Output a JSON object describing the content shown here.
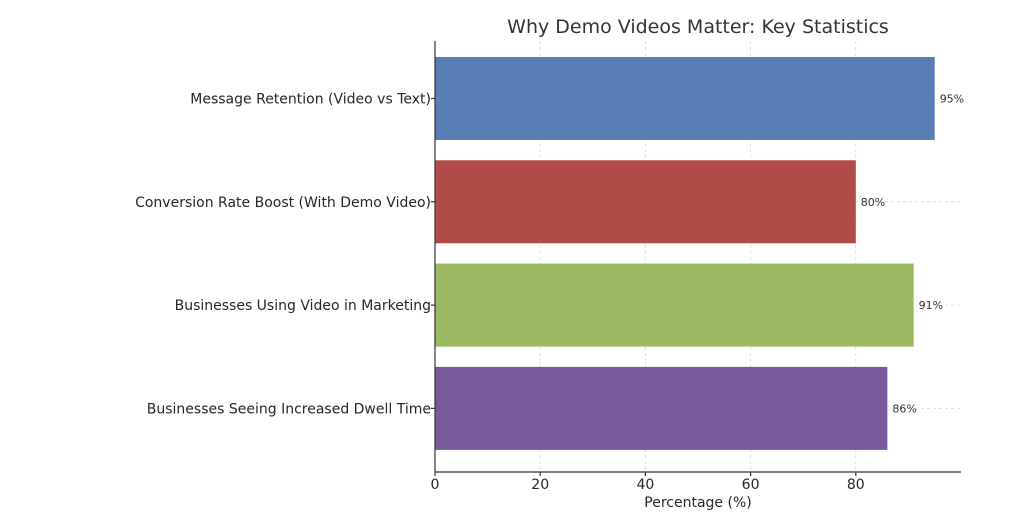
{
  "chart_data": {
    "type": "bar",
    "orientation": "horizontal",
    "title": "Why Demo Videos Matter: Key Statistics",
    "xlabel": "Percentage (%)",
    "ylabel": "",
    "xlim": [
      0,
      100
    ],
    "x_ticks": [
      0,
      20,
      40,
      60,
      80
    ],
    "grid": true,
    "categories": [
      "Message Retention (Video vs Text)",
      "Conversion Rate Boost (With Demo Video)",
      "Businesses Using Video in Marketing",
      "Businesses Seeing Increased Dwell Time"
    ],
    "values": [
      95,
      80,
      91,
      86
    ],
    "value_labels": [
      "95%",
      "80%",
      "91%",
      "86%"
    ],
    "colors": [
      "#4c72b0",
      "#a93c37",
      "#93b356",
      "#6a4c93"
    ]
  }
}
